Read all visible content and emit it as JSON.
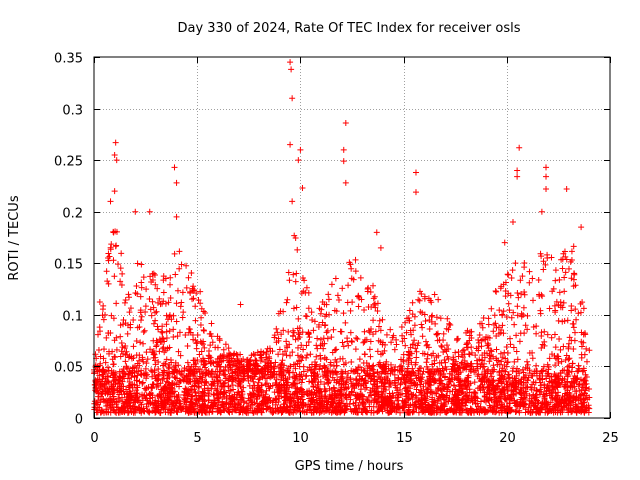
{
  "chart_data": {
    "type": "scatter",
    "title": "Day 330 of 2024, Rate Of TEC Index for receiver osls",
    "xlabel": "GPS time / hours",
    "ylabel": "ROTI / TECUs",
    "xlim": [
      0,
      25
    ],
    "ylim": [
      0,
      0.35
    ],
    "xticks": [
      0,
      5,
      10,
      15,
      20,
      25
    ],
    "xtick_labels": [
      "0",
      "5",
      "10",
      "15",
      "20",
      "25"
    ],
    "yticks": [
      0,
      0.05,
      0.1,
      0.15,
      0.2,
      0.25,
      0.3,
      0.35
    ],
    "ytick_labels": [
      "0",
      "0.05",
      "0.1",
      "0.15",
      "0.2",
      "0.25",
      "0.3",
      "0.35"
    ],
    "grid": true,
    "marker": "+",
    "marker_color": "#ff0000",
    "series": [
      {
        "name": "ROTI",
        "color": "#ff0000",
        "x_range": [
          0,
          24
        ],
        "baseline_range": [
          0.005,
          0.045
        ],
        "notable_points": [
          {
            "x": 1.05,
            "y": 0.267
          },
          {
            "x": 1.0,
            "y": 0.255
          },
          {
            "x": 1.1,
            "y": 0.25
          },
          {
            "x": 0.8,
            "y": 0.21
          },
          {
            "x": 1.0,
            "y": 0.22
          },
          {
            "x": 2.0,
            "y": 0.2
          },
          {
            "x": 2.7,
            "y": 0.2
          },
          {
            "x": 3.9,
            "y": 0.243
          },
          {
            "x": 4.0,
            "y": 0.228
          },
          {
            "x": 4.0,
            "y": 0.195
          },
          {
            "x": 9.5,
            "y": 0.345
          },
          {
            "x": 9.55,
            "y": 0.338
          },
          {
            "x": 9.6,
            "y": 0.31
          },
          {
            "x": 9.5,
            "y": 0.265
          },
          {
            "x": 10.0,
            "y": 0.26
          },
          {
            "x": 9.9,
            "y": 0.25
          },
          {
            "x": 10.1,
            "y": 0.223
          },
          {
            "x": 9.6,
            "y": 0.21
          },
          {
            "x": 12.2,
            "y": 0.286
          },
          {
            "x": 12.1,
            "y": 0.26
          },
          {
            "x": 12.1,
            "y": 0.249
          },
          {
            "x": 12.2,
            "y": 0.228
          },
          {
            "x": 15.6,
            "y": 0.238
          },
          {
            "x": 15.6,
            "y": 0.219
          },
          {
            "x": 20.6,
            "y": 0.262
          },
          {
            "x": 20.5,
            "y": 0.24
          },
          {
            "x": 20.5,
            "y": 0.234
          },
          {
            "x": 21.9,
            "y": 0.243
          },
          {
            "x": 21.9,
            "y": 0.234
          },
          {
            "x": 21.9,
            "y": 0.222
          },
          {
            "x": 22.9,
            "y": 0.222
          },
          {
            "x": 21.7,
            "y": 0.2
          },
          {
            "x": 23.6,
            "y": 0.185
          },
          {
            "x": 20.3,
            "y": 0.19
          },
          {
            "x": 19.9,
            "y": 0.17
          },
          {
            "x": 7.1,
            "y": 0.11
          },
          {
            "x": 13.7,
            "y": 0.18
          },
          {
            "x": 13.9,
            "y": 0.165
          }
        ]
      }
    ]
  }
}
